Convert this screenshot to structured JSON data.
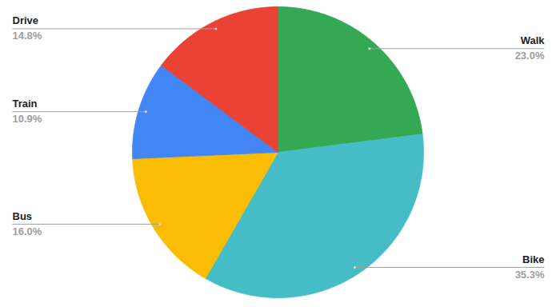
{
  "chart_data": {
    "type": "pie",
    "categories": [
      "Walk",
      "Bike",
      "Bus",
      "Train",
      "Drive"
    ],
    "values": [
      23.0,
      35.3,
      16.0,
      10.9,
      14.8
    ],
    "value_labels": [
      "23.0%",
      "35.3%",
      "16.0%",
      "10.9%",
      "14.8%"
    ],
    "colors": [
      "#34a853",
      "#46bdc6",
      "#fbbc04",
      "#4285f4",
      "#ea4335"
    ],
    "data_labels": true
  }
}
